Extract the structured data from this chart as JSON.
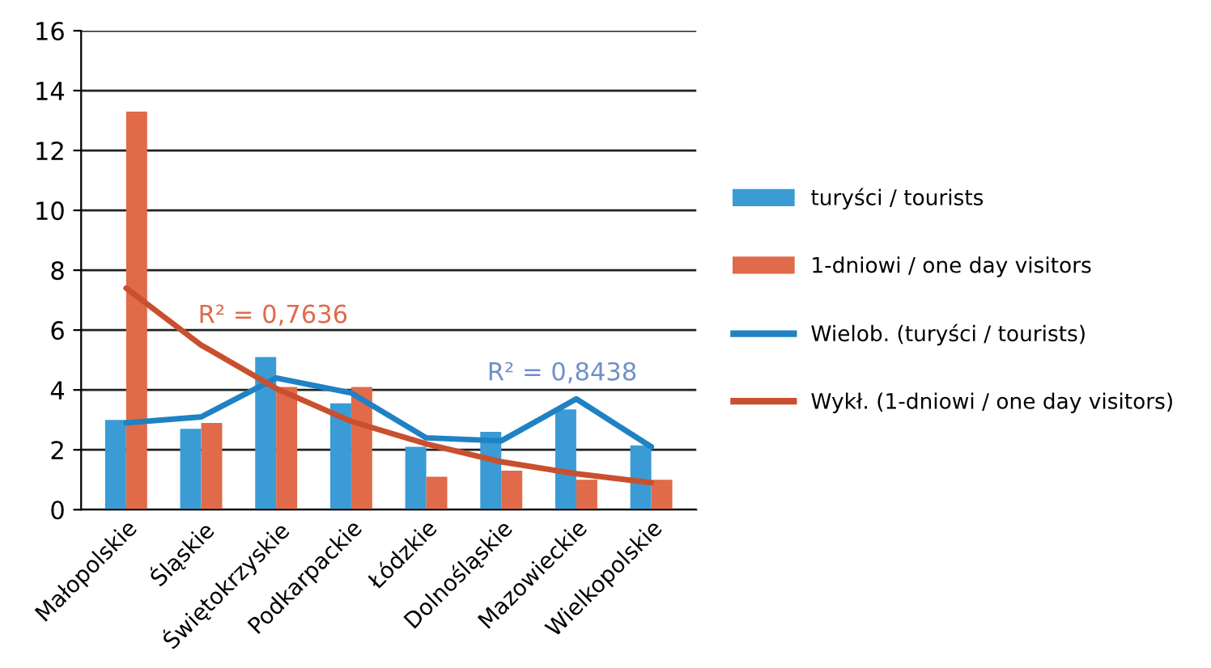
{
  "chart_data": {
    "type": "bar",
    "categories": [
      "Małopolskie",
      "Śląskie",
      "Świętokrzyskie",
      "Podkarpackie",
      "Łódzkie",
      "Dolnośląskie",
      "Mazowieckie",
      "Wielkopolskie"
    ],
    "series": [
      {
        "name": "turyści / tourists",
        "color": "#3a9bd5",
        "values": [
          3.0,
          2.7,
          5.1,
          3.55,
          2.1,
          2.6,
          3.35,
          2.15
        ]
      },
      {
        "name": "1-dniowi / one day visitors",
        "color": "#e06a4a",
        "values": [
          13.3,
          2.9,
          4.1,
          4.1,
          1.1,
          1.3,
          1.0,
          1.0
        ]
      },
      {
        "name": "Wielob. (turyści / tourists)",
        "type": "line",
        "color": "#1f82c4",
        "values": [
          2.9,
          3.1,
          4.4,
          3.9,
          2.4,
          2.3,
          3.7,
          2.1
        ]
      },
      {
        "name": "Wykł. (1-dniowi / one day visitors)",
        "type": "line",
        "color": "#c9502e",
        "values": [
          7.4,
          5.5,
          4.05,
          2.95,
          2.2,
          1.6,
          1.2,
          0.9
        ]
      }
    ],
    "annotations": [
      "R² = 0,7636",
      "R² = 0,8438"
    ],
    "ylim": [
      0,
      16
    ],
    "yticks": [
      0,
      2,
      4,
      6,
      8,
      10,
      12,
      14,
      16
    ],
    "grid": "y",
    "legend": "right"
  }
}
